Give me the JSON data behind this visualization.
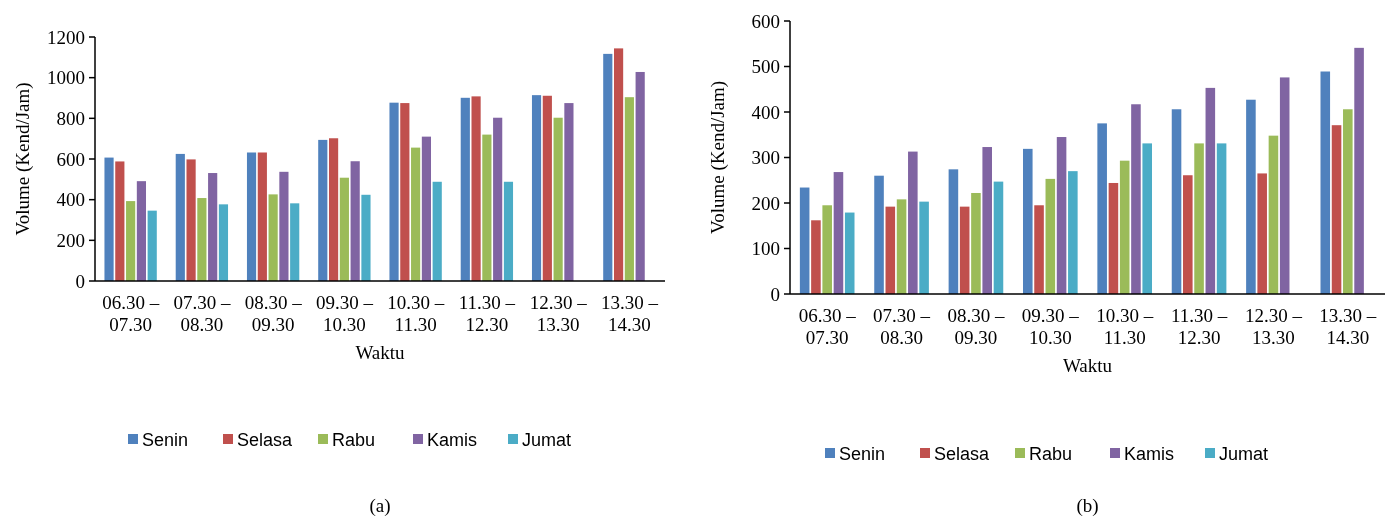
{
  "chart_data": [
    {
      "type": "bar",
      "xlabel": "Waktu",
      "ylabel": "Volume (Kend/Jam)",
      "categories": [
        "06.30 – 07.30",
        "07.30 – 08.30",
        "08.30 – 09.30",
        "09.30 – 10.30",
        "10.30 – 11.30",
        "11.30 – 12.30",
        "12.30 – 13.30",
        "13.30 – 14.30"
      ],
      "series": [
        {
          "name": "Senin",
          "color": "#4f81bd",
          "values": [
            607,
            625,
            632,
            694,
            877,
            901,
            914,
            1117
          ]
        },
        {
          "name": "Selasa",
          "color": "#c0504d",
          "values": [
            588,
            598,
            632,
            702,
            875,
            908,
            911,
            1144
          ]
        },
        {
          "name": "Rabu",
          "color": "#9bbb59",
          "values": [
            393,
            408,
            426,
            508,
            656,
            720,
            803,
            904
          ]
        },
        {
          "name": "Kamis",
          "color": "#8064a2",
          "values": [
            491,
            531,
            537,
            589,
            710,
            803,
            875,
            1028
          ]
        },
        {
          "name": "Jumat",
          "color": "#4bacc6",
          "values": [
            346,
            377,
            382,
            424,
            488,
            488,
            null,
            null
          ]
        }
      ],
      "ylim": [
        0,
        1200
      ],
      "yticks": [
        0,
        200,
        400,
        600,
        800,
        1000,
        1200
      ],
      "grid": false,
      "legend": "bottom",
      "annotations": [
        "(a)"
      ]
    },
    {
      "type": "bar",
      "xlabel": "Waktu",
      "ylabel": "Volume (Kend/Jam)",
      "categories": [
        "06.30 – 07.30",
        "07.30 – 08.30",
        "08.30 – 09.30",
        "09.30 – 10.30",
        "10.30 – 11.30",
        "11.30 – 12.30",
        "12.30 – 13.30",
        "13.30 – 14.30"
      ],
      "series": [
        {
          "name": "Senin",
          "color": "#4f81bd",
          "values": [
            234,
            260,
            274,
            319,
            375,
            406,
            427,
            489
          ]
        },
        {
          "name": "Selasa",
          "color": "#c0504d",
          "values": [
            162,
            192,
            192,
            195,
            244,
            261,
            265,
            371
          ]
        },
        {
          "name": "Rabu",
          "color": "#9bbb59",
          "values": [
            195,
            208,
            222,
            253,
            293,
            331,
            348,
            406
          ]
        },
        {
          "name": "Kamis",
          "color": "#8064a2",
          "values": [
            268,
            313,
            323,
            345,
            417,
            453,
            476,
            541
          ]
        },
        {
          "name": "Jumat",
          "color": "#4bacc6",
          "values": [
            179,
            203,
            247,
            270,
            331,
            331,
            null,
            null
          ]
        }
      ],
      "ylim": [
        0,
        600
      ],
      "yticks": [
        0,
        100,
        200,
        300,
        400,
        500,
        600
      ],
      "grid": false,
      "legend": "bottom",
      "annotations": [
        "(b)"
      ]
    }
  ]
}
